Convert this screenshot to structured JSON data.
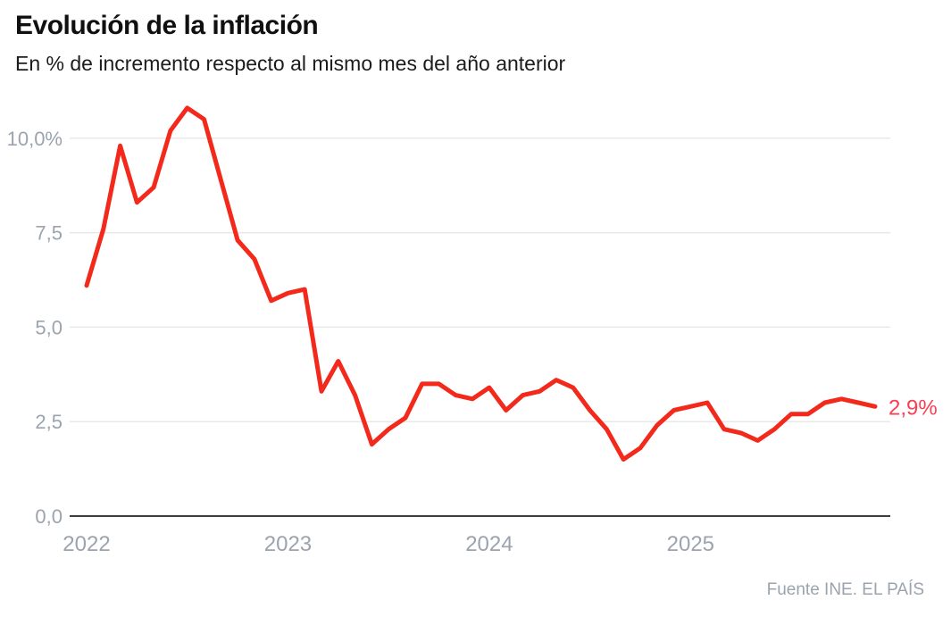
{
  "header": {
    "title": "Evolución de la inflación",
    "subtitle": "En % de incremento respecto al mismo mes del año anterior"
  },
  "footer": {
    "source": "Fuente INE. EL PAÍS"
  },
  "colors": {
    "line": "#f2291b",
    "end_label": "#fb3e51",
    "grid": "#e8e8e8",
    "axis": "#3e3e3e",
    "tick_text": "#9ba4ae"
  },
  "chart_data": {
    "type": "line",
    "title": "Evolución de la inflación",
    "subtitle": "En % de incremento respecto al mismo mes del año anterior",
    "unit": "%",
    "grid": "horizontal",
    "ylim": [
      0,
      11
    ],
    "y_axis": {
      "ticks": [
        {
          "value": 10,
          "label": "10,0%"
        },
        {
          "value": 7.5,
          "label": "7,5"
        },
        {
          "value": 5,
          "label": "5,0"
        },
        {
          "value": 2.5,
          "label": "2,5"
        },
        {
          "value": 0,
          "label": "0,0"
        }
      ]
    },
    "x_axis": {
      "ticks": [
        {
          "year": 2022,
          "label": "2022"
        },
        {
          "year": 2023,
          "label": "2023"
        },
        {
          "year": 2024,
          "label": "2024"
        },
        {
          "year": 2025,
          "label": "2025"
        }
      ]
    },
    "x": [
      "2022-01",
      "2022-02",
      "2022-03",
      "2022-04",
      "2022-05",
      "2022-06",
      "2022-07",
      "2022-08",
      "2022-09",
      "2022-10",
      "2022-11",
      "2022-12",
      "2023-01",
      "2023-02",
      "2023-03",
      "2023-04",
      "2023-05",
      "2023-06",
      "2023-07",
      "2023-08",
      "2023-09",
      "2023-10",
      "2023-11",
      "2023-12",
      "2024-01",
      "2024-02",
      "2024-03",
      "2024-04",
      "2024-05",
      "2024-06",
      "2024-07",
      "2024-08",
      "2024-09",
      "2024-10",
      "2024-11",
      "2024-12",
      "2025-01",
      "2025-02",
      "2025-03",
      "2025-04",
      "2025-05",
      "2025-06",
      "2025-07",
      "2025-08",
      "2025-09",
      "2025-10",
      "2025-11",
      "2025-12"
    ],
    "series": [
      {
        "color": "#f2291b",
        "values": [
          6.1,
          7.6,
          9.8,
          8.3,
          8.7,
          10.2,
          10.8,
          10.5,
          8.9,
          7.3,
          6.8,
          5.7,
          5.9,
          6.0,
          3.3,
          4.1,
          3.2,
          1.9,
          2.3,
          2.6,
          3.5,
          3.5,
          3.2,
          3.1,
          3.4,
          2.8,
          3.2,
          3.3,
          3.6,
          3.4,
          2.8,
          2.3,
          1.5,
          1.8,
          2.4,
          2.8,
          2.9,
          3.0,
          2.3,
          2.2,
          2.0,
          2.3,
          2.7,
          2.7,
          3.0,
          3.1,
          3.0,
          2.9
        ]
      }
    ],
    "end_label": {
      "text": "2,9%",
      "color": "#fb3e51"
    },
    "legend": "none"
  }
}
